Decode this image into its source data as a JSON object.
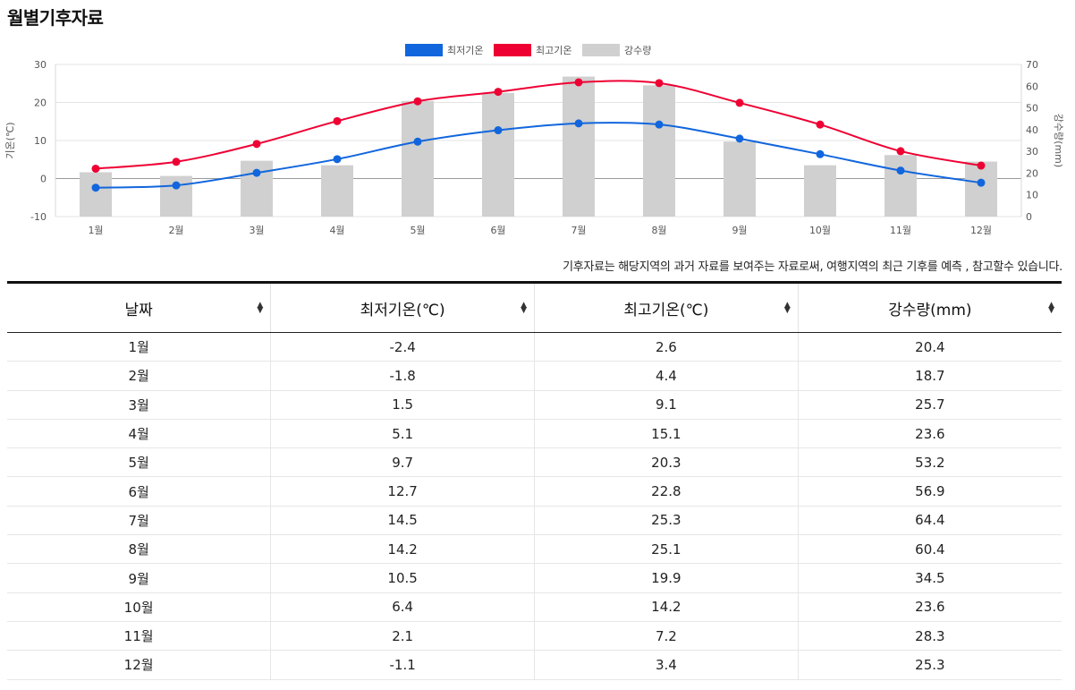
{
  "page": {
    "title": "월별기후자료",
    "note": "기후자료는 해당지역의 과거 자료를 보여주는 자료로써, 여행지역의 최근 기후를 예측 , 참고할수 있습니다."
  },
  "colors": {
    "min_line": "#1166dd",
    "max_line": "#ee0033",
    "rain_bar": "#d0d0d0"
  },
  "chart_data": {
    "type": "bar-line-combo",
    "categories": [
      "1월",
      "2월",
      "3월",
      "4월",
      "5월",
      "6월",
      "7월",
      "8월",
      "9월",
      "10월",
      "11월",
      "12월"
    ],
    "series": [
      {
        "name": "최저기온",
        "type": "line",
        "axis": "left",
        "values": [
          -2.4,
          -1.8,
          1.5,
          5.1,
          9.7,
          12.7,
          14.5,
          14.2,
          10.5,
          6.4,
          2.1,
          -1.1
        ]
      },
      {
        "name": "최고기온",
        "type": "line",
        "axis": "left",
        "values": [
          2.6,
          4.4,
          9.1,
          15.1,
          20.3,
          22.8,
          25.3,
          25.1,
          19.9,
          14.2,
          7.2,
          3.4
        ]
      },
      {
        "name": "강수량",
        "type": "bar",
        "axis": "right",
        "values": [
          20.4,
          18.7,
          25.7,
          23.6,
          53.2,
          56.9,
          64.4,
          60.4,
          34.5,
          23.6,
          28.3,
          25.3
        ]
      }
    ],
    "ylabel_left": "기온(℃)",
    "ylabel_right": "강수량(mm)",
    "ylim_left": [
      -10,
      30
    ],
    "yticks_left": [
      "30",
      "20",
      "10",
      "0",
      "-10"
    ],
    "ylim_right": [
      0,
      70
    ],
    "yticks_right": [
      "70",
      "60",
      "50",
      "40",
      "30",
      "20",
      "10",
      "0"
    ],
    "legend_position": "top-center"
  },
  "table": {
    "headers": [
      "날짜",
      "최저기온(℃)",
      "최고기온(℃)",
      "강수량(mm)"
    ],
    "rows": [
      [
        "1월",
        "-2.4",
        "2.6",
        "20.4"
      ],
      [
        "2월",
        "-1.8",
        "4.4",
        "18.7"
      ],
      [
        "3월",
        "1.5",
        "9.1",
        "25.7"
      ],
      [
        "4월",
        "5.1",
        "15.1",
        "23.6"
      ],
      [
        "5월",
        "9.7",
        "20.3",
        "53.2"
      ],
      [
        "6월",
        "12.7",
        "22.8",
        "56.9"
      ],
      [
        "7월",
        "14.5",
        "25.3",
        "64.4"
      ],
      [
        "8월",
        "14.2",
        "25.1",
        "60.4"
      ],
      [
        "9월",
        "10.5",
        "19.9",
        "34.5"
      ],
      [
        "10월",
        "6.4",
        "14.2",
        "23.6"
      ],
      [
        "11월",
        "2.1",
        "7.2",
        "28.3"
      ],
      [
        "12월",
        "-1.1",
        "3.4",
        "25.3"
      ]
    ]
  }
}
